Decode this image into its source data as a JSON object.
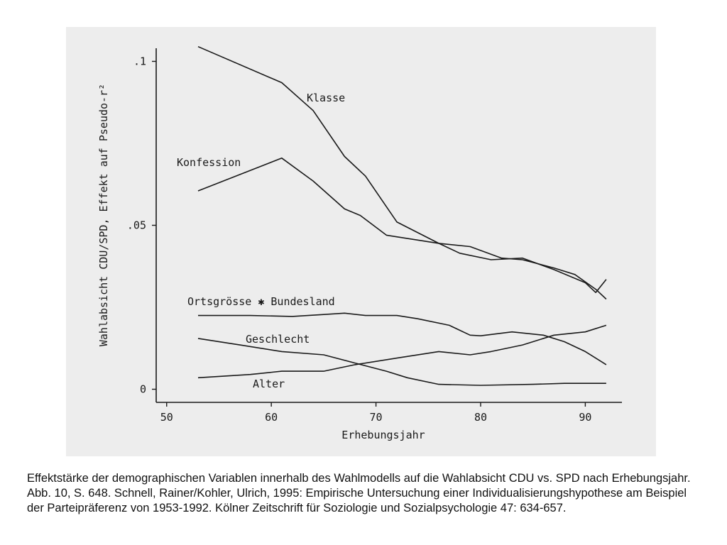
{
  "chart_data": {
    "type": "line",
    "title": "",
    "xlabel": "Erhebungsjahr",
    "ylabel": "Wahlabsicht CDU/SPD, Effekt auf Pseudo-r²",
    "xlim": [
      49,
      93.5
    ],
    "ylim": [
      -0.004,
      0.104
    ],
    "x_ticks": [
      50,
      60,
      70,
      80,
      90
    ],
    "x_tick_labels": [
      "50",
      "60",
      "70",
      "80",
      "90"
    ],
    "y_ticks": [
      0,
      0.05,
      0.1
    ],
    "y_tick_labels": [
      "0",
      ".05",
      ".1"
    ],
    "grid": false,
    "legend": "inline labels",
    "line_color": "#1a1a1a",
    "series": [
      {
        "name": "Klasse",
        "x": [
          53,
          61,
          64,
          67,
          69,
          72,
          76,
          79,
          82,
          84,
          87,
          89,
          91,
          92
        ],
        "y": [
          0.1045,
          0.0935,
          0.085,
          0.071,
          0.065,
          0.051,
          0.0445,
          0.0435,
          0.04,
          0.0395,
          0.037,
          0.035,
          0.0305,
          0.0275
        ]
      },
      {
        "name": "Konfession",
        "x": [
          53,
          61,
          64,
          67,
          68.5,
          71,
          76,
          78,
          81,
          84,
          87,
          90,
          91,
          92
        ],
        "y": [
          0.0605,
          0.0705,
          0.0635,
          0.055,
          0.053,
          0.047,
          0.0445,
          0.0415,
          0.0395,
          0.04,
          0.0365,
          0.0325,
          0.0295,
          0.0335
        ]
      },
      {
        "name": "Ortsgrösse ✱ Bundesland",
        "x": [
          53,
          58,
          62,
          65,
          67,
          69,
          72,
          74,
          77,
          79,
          80,
          83,
          86,
          88,
          90,
          92
        ],
        "y": [
          0.0225,
          0.0225,
          0.0222,
          0.0228,
          0.0232,
          0.0225,
          0.0225,
          0.0215,
          0.0195,
          0.0165,
          0.0163,
          0.0175,
          0.0165,
          0.0145,
          0.0115,
          0.0075
        ]
      },
      {
        "name": "Geschlecht",
        "x": [
          53,
          57,
          61,
          65,
          68,
          71,
          73,
          76,
          80,
          85,
          88,
          90,
          92
        ],
        "y": [
          0.0155,
          0.0135,
          0.0115,
          0.0105,
          0.008,
          0.0055,
          0.0035,
          0.0015,
          0.0012,
          0.0015,
          0.0018,
          0.0018,
          0.0018
        ]
      },
      {
        "name": "Alter",
        "x": [
          53,
          58,
          61,
          65,
          68,
          72,
          76,
          79,
          81,
          84,
          87,
          90,
          92
        ],
        "y": [
          0.0035,
          0.0045,
          0.0055,
          0.0055,
          0.0075,
          0.0095,
          0.0115,
          0.0105,
          0.0115,
          0.0135,
          0.0165,
          0.0175,
          0.0195
        ]
      }
    ]
  },
  "caption": "Effektstärke der demographischen Variablen innerhalb des Wahlmodells auf die Wahlabsicht CDU vs. SPD nach Erhebungsjahr. Abb. 10, S. 648. Schnell, Rainer/Kohler, Ulrich, 1995: Empirische Untersuchung einer Individualisierungshypothese am Beispiel der Parteipräferenz von 1953-1992. Kölner Zeitschrift für Soziologie und Sozialpsychologie 47: 634-657."
}
